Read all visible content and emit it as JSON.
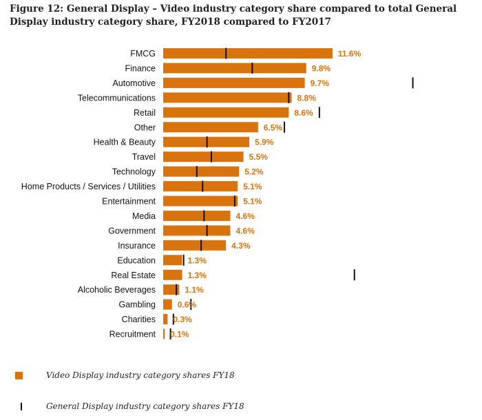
{
  "colors": {
    "bar": "#d9730d",
    "marker": "#111111",
    "value_text": "#d9730d"
  },
  "chart_data": {
    "type": "bar",
    "orientation": "horizontal",
    "title": "Figure 12: General Display – Video industry category share compared to total General Display industry category share, FY2018 compared to FY2017",
    "categories": [
      "FMCG",
      "Finance",
      "Automotive",
      "Telecommunications",
      "Retail",
      "Other",
      "Health & Beauty",
      "Travel",
      "Technology",
      "Home Products / Services / Utilities",
      "Entertainment",
      "Media",
      "Government",
      "Insurance",
      "Education",
      "Real Estate",
      "Alcoholic Beverages",
      "Gambling",
      "Charities",
      "Recruitment"
    ],
    "series": [
      {
        "name": "Video Display industry category shares FY18",
        "mark": "bar",
        "values": [
          11.6,
          9.8,
          9.7,
          8.8,
          8.6,
          6.5,
          5.9,
          5.5,
          5.2,
          5.1,
          5.1,
          4.6,
          4.6,
          4.3,
          1.3,
          1.3,
          1.1,
          0.6,
          0.3,
          0.1
        ]
      },
      {
        "name": "General Display industry category shares FY18",
        "mark": "tick",
        "values": [
          4.3,
          6.1,
          17.1,
          8.6,
          10.7,
          8.3,
          3.0,
          3.3,
          2.3,
          2.7,
          4.9,
          2.8,
          3.0,
          2.6,
          1.4,
          13.1,
          0.9,
          1.9,
          0.7,
          0.5
        ]
      }
    ],
    "value_labels": [
      "11.6%",
      "9.8%",
      "9.7%",
      "8.8%",
      "8.6%",
      "6.5%",
      "5.9%",
      "5.5%",
      "5.2%",
      "5.1%",
      "5.1%",
      "4.6%",
      "4.6%",
      "4.3%",
      "1.3%",
      "1.3%",
      "1.1%",
      "0.6%",
      "0.3%",
      "0.1%"
    ],
    "xlim": [
      0,
      18
    ],
    "xlabel": "",
    "ylabel": "",
    "grid": false,
    "legend": "bottom-left"
  },
  "legend": {
    "bar_label": "Video Display industry category shares FY18",
    "tick_label": "General Display industry category shares FY18"
  }
}
